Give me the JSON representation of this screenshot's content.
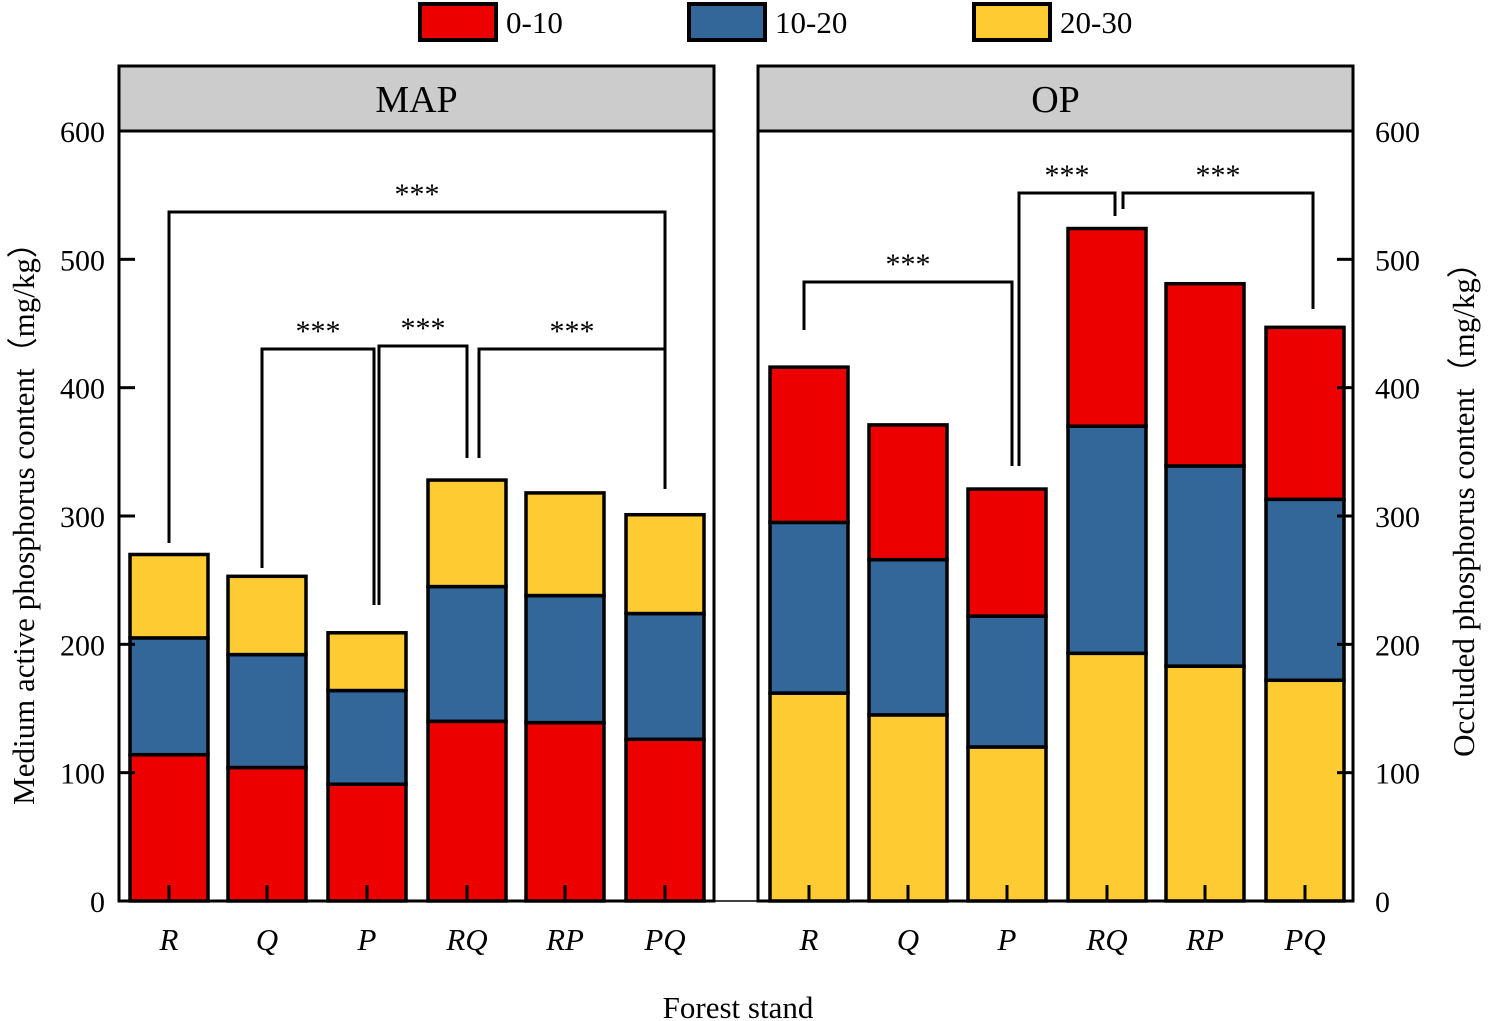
{
  "chart_data": {
    "type": "bar",
    "stacked": true,
    "categories": [
      "R",
      "Q",
      "P",
      "RQ",
      "RP",
      "PQ"
    ],
    "xlabel": "Forest stand",
    "ylim": [
      0,
      600
    ],
    "yticks": [
      0,
      100,
      200,
      300,
      400,
      500,
      600
    ],
    "legend": {
      "position": "top",
      "entries": [
        {
          "label": "0-10",
          "color": "#ec0000"
        },
        {
          "label": "10-20",
          "color": "#336699"
        },
        {
          "label": "20-30",
          "color": "#fecb32"
        }
      ]
    },
    "panels": [
      {
        "title": "MAP",
        "ylabel": "Medium active phosphorus content（mg/kg）",
        "axis_side": "left",
        "stack_order": [
          "0-10",
          "10-20",
          "20-30"
        ],
        "series": [
          {
            "name": "0-10",
            "values": [
              114,
              104,
              91,
              140,
              139,
              126
            ]
          },
          {
            "name": "10-20",
            "values": [
              91,
              88,
              73,
              105,
              99,
              98
            ]
          },
          {
            "name": "20-30",
            "values": [
              65,
              61,
              45,
              83,
              80,
              77
            ]
          }
        ],
        "significance": [
          {
            "label": "***",
            "from": "R",
            "to": "PQ"
          },
          {
            "label": "***",
            "from": "Q",
            "to": "P"
          },
          {
            "label": "***",
            "from": "P",
            "to": "RQ"
          },
          {
            "label": "***",
            "from": "RQ",
            "to": "PQ"
          }
        ]
      },
      {
        "title": "OP",
        "ylabel": "Occluded phosphorus content（mg/kg）",
        "axis_side": "right",
        "stack_order": [
          "20-30",
          "10-20",
          "0-10"
        ],
        "series": [
          {
            "name": "20-30",
            "values": [
              162,
              145,
              120,
              193,
              183,
              172
            ]
          },
          {
            "name": "10-20",
            "values": [
              133,
              121,
              102,
              177,
              156,
              141
            ]
          },
          {
            "name": "0-10",
            "values": [
              121,
              105,
              99,
              154,
              142,
              134
            ]
          }
        ],
        "significance": [
          {
            "label": "***",
            "from": "R",
            "to": "P"
          },
          {
            "label": "***",
            "from": "P",
            "to": "RQ"
          },
          {
            "label": "***",
            "from": "RQ",
            "to": "PQ"
          }
        ]
      }
    ]
  }
}
